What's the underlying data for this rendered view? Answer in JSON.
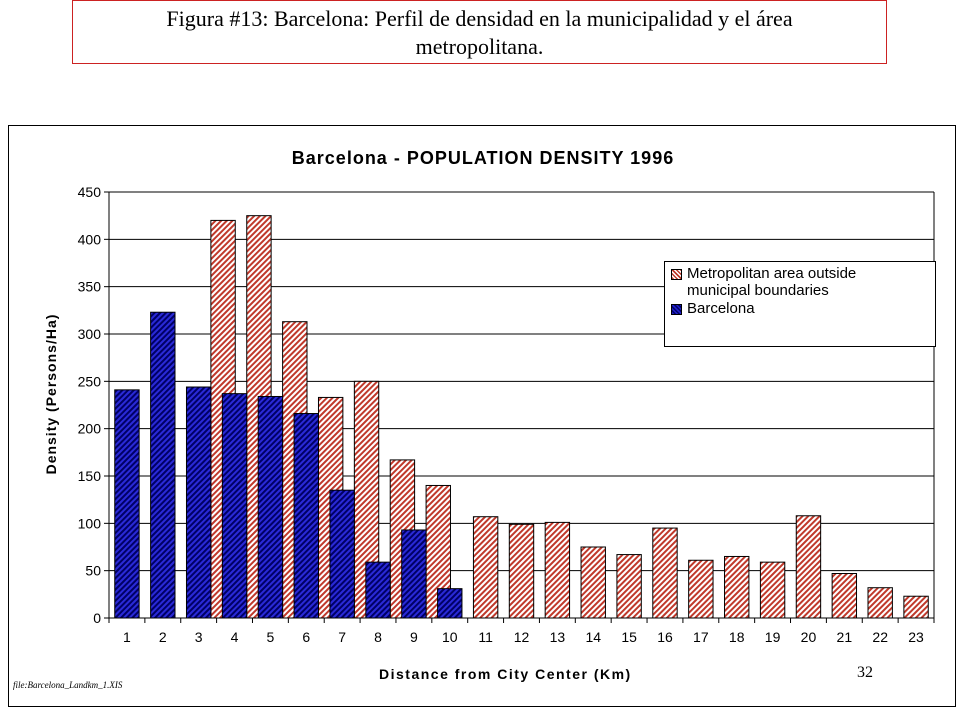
{
  "caption": {
    "line1": "Figura #13: Barcelona: Perfil de densidad en la municipalidad y el área",
    "line2": "metropolitana."
  },
  "footer": {
    "file_note": "file:Barcelona_Landkm_1.XIS",
    "page_number": "32"
  },
  "colors": {
    "metro_fill": "#c0392b",
    "barcelona_fill": "#1f1fc8",
    "barcelona_dark": "#000066",
    "caption_border": "#cc2222"
  },
  "chart_data": {
    "type": "bar",
    "title": "Barcelona - POPULATION DENSITY 1996",
    "xlabel": "Distance from City Center (Km)",
    "ylabel": "Density (Persons/Ha)",
    "ylim": [
      0,
      450
    ],
    "yticks": [
      0,
      50,
      100,
      150,
      200,
      250,
      300,
      350,
      400,
      450
    ],
    "categories": [
      "1",
      "2",
      "3",
      "4",
      "5",
      "6",
      "7",
      "8",
      "9",
      "10",
      "11",
      "12",
      "13",
      "14",
      "15",
      "16",
      "17",
      "18",
      "19",
      "20",
      "21",
      "22",
      "23"
    ],
    "grid": true,
    "legend_position": "top-right",
    "series": [
      {
        "name": "Metropolitan area outside municipal boundaries",
        "values": [
          null,
          null,
          null,
          420,
          425,
          313,
          233,
          250,
          167,
          140,
          107,
          99,
          101,
          75,
          67,
          95,
          61,
          65,
          59,
          108,
          47,
          32,
          23
        ]
      },
      {
        "name": "Barcelona",
        "values": [
          241,
          323,
          244,
          237,
          234,
          216,
          135,
          59,
          93,
          31,
          null,
          null,
          null,
          null,
          null,
          null,
          null,
          null,
          null,
          null,
          null,
          null,
          null
        ]
      }
    ]
  }
}
